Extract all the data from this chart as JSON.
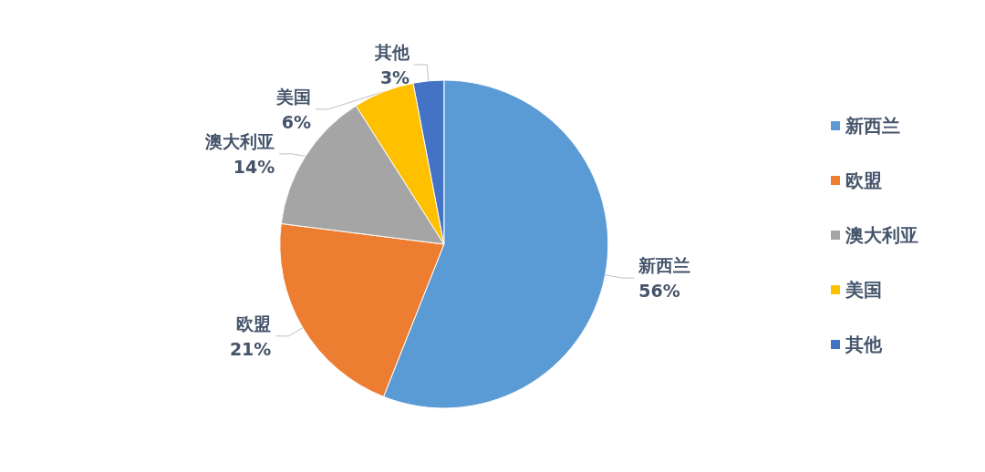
{
  "chart_data": {
    "type": "pie",
    "categories": [
      "新西兰",
      "欧盟",
      "澳大利亚",
      "美国",
      "其他"
    ],
    "values": [
      56,
      21,
      14,
      6,
      3
    ],
    "colors": [
      "#5b9bd5",
      "#ed7d31",
      "#a5a5a5",
      "#ffc000",
      "#4472c4"
    ],
    "value_labels": [
      "56%",
      "21%",
      "14%",
      "6%",
      "3%"
    ],
    "legend": "right"
  }
}
